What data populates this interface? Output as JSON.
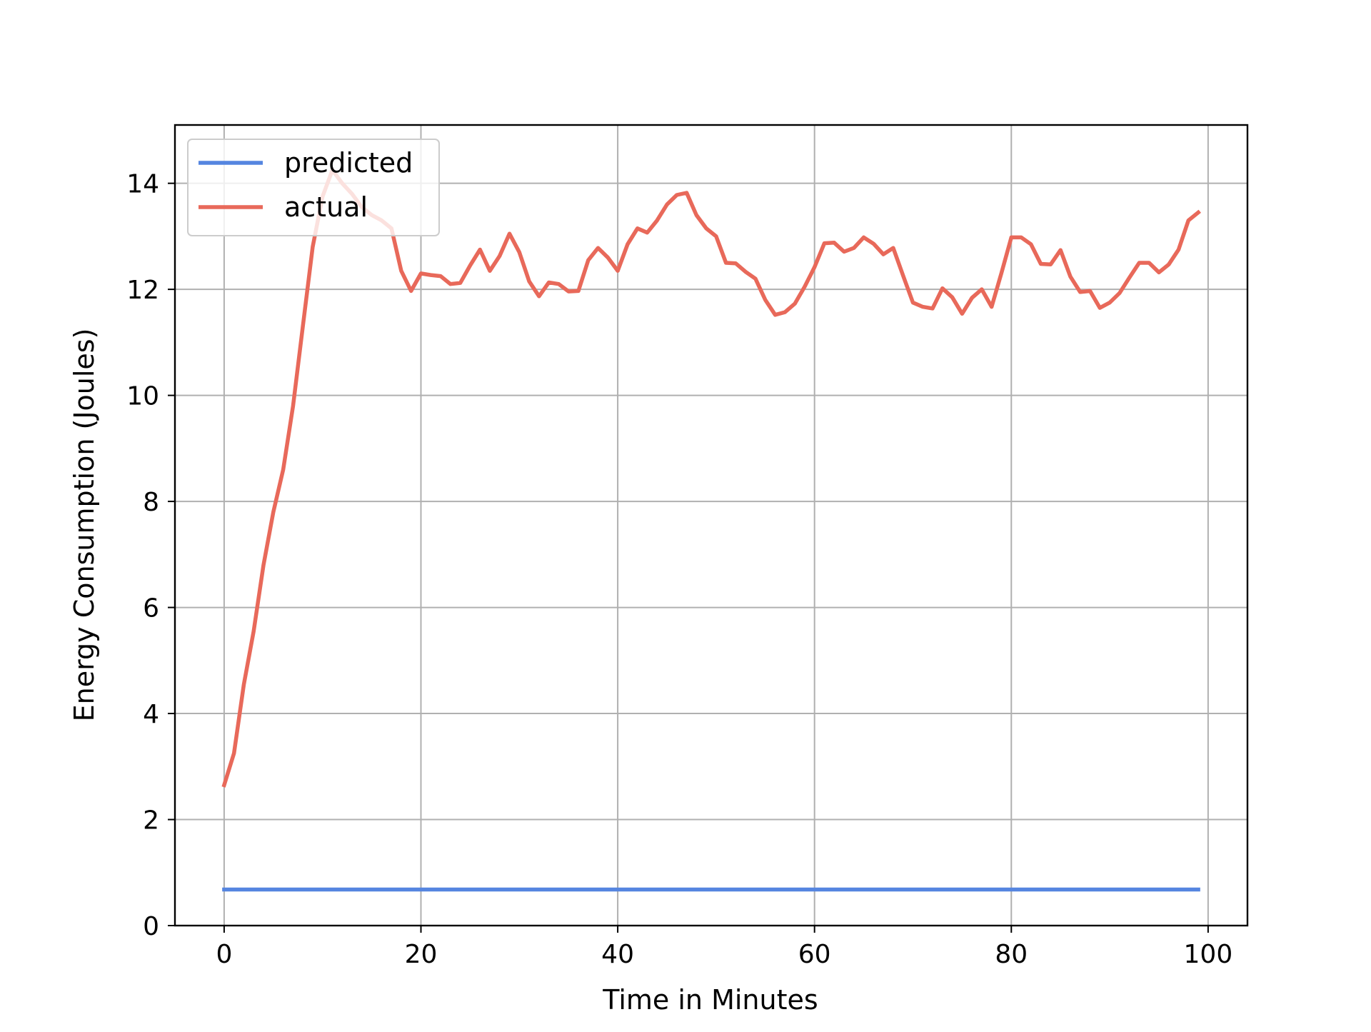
{
  "chart_data": {
    "type": "line",
    "title": "",
    "xlabel": "Time in Minutes",
    "ylabel": "Energy Consumption (Joules)",
    "xlim": [
      -5,
      104
    ],
    "ylim": [
      0,
      15.1
    ],
    "xticks": [
      0,
      20,
      40,
      60,
      80,
      100
    ],
    "yticks": [
      0,
      2,
      4,
      6,
      8,
      10,
      12,
      14
    ],
    "grid": true,
    "legend_position": "top-left",
    "series": [
      {
        "name": "predicted",
        "color": "#5585e0",
        "x": [
          0,
          99
        ],
        "y": [
          0.68,
          0.68
        ]
      },
      {
        "name": "actual",
        "color": "#e8695a",
        "x": [
          0,
          1,
          2,
          3,
          4,
          5,
          6,
          7,
          8,
          9,
          10,
          11,
          12,
          13,
          14,
          15,
          16,
          17,
          18,
          19,
          20,
          21,
          22,
          23,
          24,
          25,
          26,
          27,
          28,
          29,
          30,
          31,
          32,
          33,
          34,
          35,
          36,
          37,
          38,
          39,
          40,
          41,
          42,
          43,
          44,
          45,
          46,
          47,
          48,
          49,
          50,
          51,
          52,
          53,
          54,
          55,
          56,
          57,
          58,
          59,
          60,
          61,
          62,
          63,
          64,
          65,
          66,
          67,
          68,
          69,
          70,
          71,
          72,
          73,
          74,
          75,
          76,
          77,
          78,
          79,
          80,
          81,
          82,
          83,
          84,
          85,
          86,
          87,
          88,
          89,
          90,
          91,
          92,
          93,
          94,
          95,
          96,
          97,
          98,
          99
        ],
        "y": [
          2.65,
          3.25,
          4.55,
          5.55,
          6.8,
          7.8,
          8.6,
          9.8,
          11.3,
          12.8,
          13.75,
          14.25,
          14.0,
          13.8,
          13.55,
          13.4,
          13.3,
          13.15,
          12.35,
          11.97,
          12.3,
          12.27,
          12.25,
          12.1,
          12.12,
          12.45,
          12.75,
          12.35,
          12.63,
          13.05,
          12.7,
          12.15,
          11.87,
          12.13,
          12.1,
          11.96,
          11.97,
          12.55,
          12.78,
          12.6,
          12.35,
          12.85,
          13.15,
          13.07,
          13.3,
          13.6,
          13.78,
          13.82,
          13.4,
          13.15,
          13.0,
          12.5,
          12.49,
          12.33,
          12.2,
          11.8,
          11.52,
          11.57,
          11.73,
          12.05,
          12.42,
          12.87,
          12.88,
          12.71,
          12.78,
          12.98,
          12.86,
          12.66,
          12.78,
          12.26,
          11.75,
          11.67,
          11.64,
          12.02,
          11.85,
          11.54,
          11.84,
          12.0,
          11.67,
          12.31,
          12.98,
          12.98,
          12.85,
          12.48,
          12.47,
          12.74,
          12.24,
          11.95,
          11.97,
          11.65,
          11.75,
          11.93,
          12.22,
          12.5,
          12.5,
          12.32,
          12.47,
          12.75,
          13.3,
          13.45
        ]
      }
    ]
  }
}
